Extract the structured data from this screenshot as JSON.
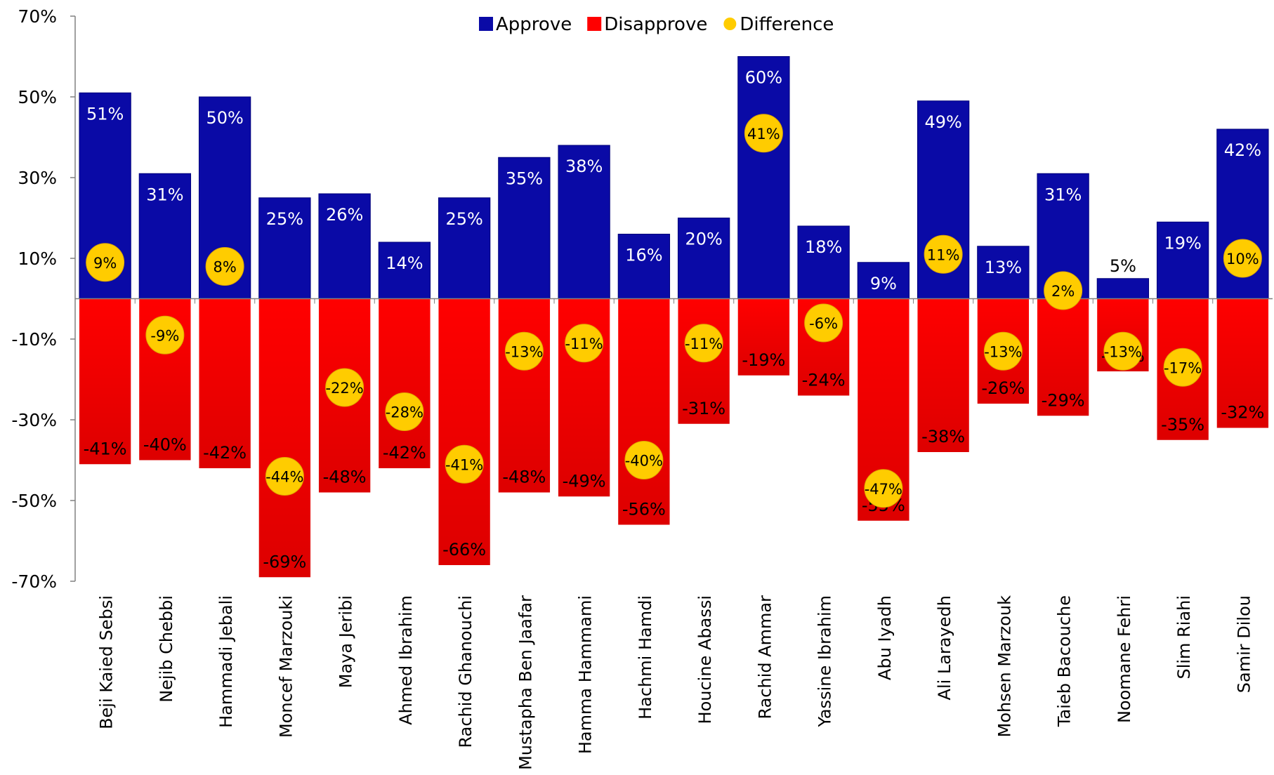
{
  "chart_data": {
    "type": "bar",
    "categories": [
      "Beji Kaied Sebsi",
      "Nejib Chebbi",
      "Hammadi Jebali",
      "Moncef Marzouki",
      "Maya Jeribi",
      "Ahmed Ibrahim",
      "Rachid Ghanouchi",
      "Mustapha Ben Jaafar",
      "Hamma Hammami",
      "Hachmi Hamdi",
      "Houcine Abassi",
      "Rachid Ammar",
      "Yassine Ibrahim",
      "Abu Iyadh",
      "Ali Larayedh",
      "Mohsen Marzouk",
      "Taieb Bacouche",
      "Noomane Fehri",
      "Slim Riahi",
      "Samir Dilou"
    ],
    "series": [
      {
        "name": "Approve",
        "color": "#0a0aa6",
        "values": [
          51,
          31,
          50,
          25,
          26,
          14,
          25,
          35,
          38,
          16,
          20,
          60,
          18,
          9,
          49,
          13,
          31,
          5,
          19,
          42
        ]
      },
      {
        "name": "Disapprove",
        "color": "#ff0000",
        "values": [
          -41,
          -40,
          -42,
          -69,
          -48,
          -42,
          -66,
          -48,
          -49,
          -56,
          -31,
          -19,
          -24,
          -55,
          -38,
          -26,
          -29,
          -18,
          -35,
          -32
        ]
      },
      {
        "name": "Difference",
        "color": "#ffcc00",
        "values": [
          9,
          -9,
          8,
          -44,
          -22,
          -28,
          -41,
          -13,
          -11,
          -40,
          -11,
          41,
          -6,
          -47,
          11,
          -13,
          2,
          -13,
          -17,
          10
        ]
      }
    ],
    "value_labels": {
      "approve": [
        "51%",
        "31%",
        "50%",
        "25%",
        "26%",
        "14%",
        "25%",
        "35%",
        "38%",
        "16%",
        "20%",
        "60%",
        "18%",
        "9%",
        "49%",
        "13%",
        "31%",
        "5%",
        "19%",
        "42%"
      ],
      "disapprove": [
        "-41%",
        "-40%",
        "-42%",
        "-69%",
        "-48%",
        "-42%",
        "-66%",
        "-48%",
        "-49%",
        "-56%",
        "-31%",
        "-19%",
        "-24%",
        "-55%",
        "-38%",
        "-26%",
        "-29%",
        "-18%",
        "-35%",
        "-32%"
      ],
      "difference": [
        "9%",
        "-9%",
        "8%",
        "-44%",
        "-22%",
        "-28%",
        "-41%",
        "-13%",
        "-11%",
        "-40%",
        "-11%",
        "41%",
        "-6%",
        "-47%",
        "11%",
        "-13%",
        "2%",
        "-13%",
        "-17%",
        "10%"
      ]
    },
    "ylim": [
      -70,
      70
    ],
    "yticks": [
      70,
      50,
      30,
      10,
      -10,
      -30,
      -50,
      -70
    ],
    "ytick_labels": [
      "70%",
      "50%",
      "30%",
      "10%",
      "-10%",
      "-30%",
      "-50%",
      "-70%"
    ],
    "title": "",
    "xlabel": "",
    "ylabel": "",
    "grid": false,
    "legend_position": "top-center"
  }
}
